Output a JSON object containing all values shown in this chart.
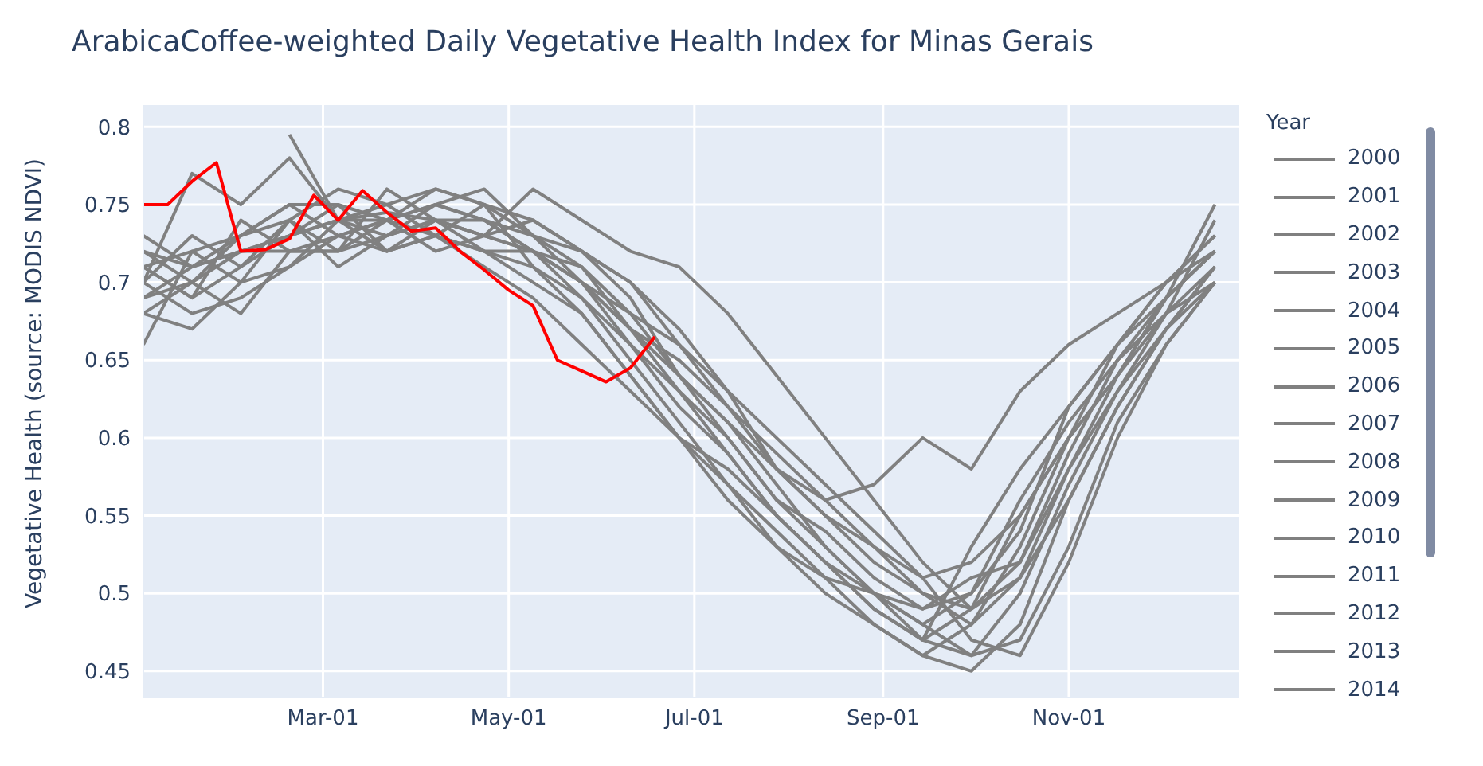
{
  "chart_data": {
    "type": "line",
    "title": "ArabicaCoffee-weighted Daily Vegetative Health Index for Minas Gerais",
    "ylabel": "Vegetative Health (source: MODIS NDVI)",
    "legend_title": "Year",
    "legend": "right",
    "grid": true,
    "marker": "none",
    "line_style": "solid",
    "x": [
      "--01-01",
      "--01-17",
      "--02-02",
      "--02-18",
      "--03-06",
      "--03-22",
      "--04-07",
      "--04-23",
      "--05-09",
      "--05-25",
      "--06-10",
      "--06-26",
      "--07-12",
      "--07-28",
      "--08-13",
      "--08-29",
      "--09-14",
      "--09-30",
      "--10-16",
      "--11-01",
      "--11-17",
      "--12-03",
      "--12-19"
    ],
    "xlim": [
      "--01-01",
      "--12-27"
    ],
    "xticks": [
      {
        "value": "--03-01",
        "label": "Mar-01"
      },
      {
        "value": "--05-01",
        "label": "May-01"
      },
      {
        "value": "--07-01",
        "label": "Jul-01"
      },
      {
        "value": "--09-01",
        "label": "Sep-01"
      },
      {
        "value": "--11-01",
        "label": "Nov-01"
      }
    ],
    "ylim": [
      0.433,
      0.814
    ],
    "yticks": [
      0.45,
      0.5,
      0.55,
      0.6,
      0.65,
      0.7,
      0.75,
      0.8
    ],
    "series": [
      {
        "name": "2000",
        "color": "#808080",
        "values": [
          null,
          null,
          null,
          0.795,
          0.74,
          0.745,
          0.74,
          0.73,
          0.72,
          0.7,
          0.67,
          0.64,
          0.61,
          0.58,
          0.55,
          0.52,
          0.5,
          0.49,
          0.52,
          0.58,
          0.64,
          0.68,
          0.7
        ]
      },
      {
        "name": "2001",
        "color": "#808080",
        "values": [
          0.7,
          0.77,
          0.75,
          0.78,
          0.74,
          0.75,
          0.76,
          0.75,
          0.74,
          0.72,
          0.7,
          0.66,
          0.62,
          0.58,
          0.55,
          0.53,
          0.5,
          0.48,
          0.51,
          0.56,
          0.62,
          0.67,
          0.7
        ]
      },
      {
        "name": "2002",
        "color": "#808080",
        "values": [
          0.72,
          0.7,
          0.73,
          0.75,
          0.75,
          0.74,
          0.75,
          0.76,
          0.73,
          0.7,
          0.68,
          0.64,
          0.6,
          0.56,
          0.53,
          0.5,
          0.47,
          0.49,
          0.55,
          0.6,
          0.64,
          0.69,
          0.72
        ]
      },
      {
        "name": "2003",
        "color": "#808080",
        "values": [
          0.69,
          0.71,
          0.72,
          0.72,
          0.73,
          0.72,
          0.73,
          0.72,
          0.71,
          0.69,
          0.66,
          0.63,
          0.59,
          0.55,
          0.52,
          0.5,
          0.48,
          0.46,
          0.5,
          0.57,
          0.63,
          0.68,
          0.74
        ]
      },
      {
        "name": "2004",
        "color": "#808080",
        "values": [
          0.68,
          0.67,
          0.7,
          0.71,
          0.74,
          0.74,
          0.75,
          0.74,
          0.72,
          0.7,
          0.67,
          0.65,
          0.62,
          0.59,
          0.56,
          0.53,
          0.51,
          0.52,
          0.55,
          0.6,
          0.66,
          0.7,
          0.73
        ]
      },
      {
        "name": "2005",
        "color": "#808080",
        "values": [
          0.71,
          0.69,
          0.74,
          0.72,
          0.72,
          0.76,
          0.74,
          0.73,
          0.76,
          0.74,
          0.72,
          0.71,
          0.68,
          0.64,
          0.6,
          0.56,
          0.52,
          0.49,
          0.51,
          0.58,
          0.63,
          0.67,
          0.71
        ]
      },
      {
        "name": "2006",
        "color": "#808080",
        "values": [
          0.66,
          0.72,
          0.73,
          0.74,
          0.71,
          0.73,
          0.74,
          0.74,
          0.72,
          0.69,
          0.65,
          0.61,
          0.57,
          0.53,
          0.51,
          0.5,
          0.49,
          0.5,
          0.54,
          0.62,
          0.66,
          0.7,
          0.73
        ]
      },
      {
        "name": "2007",
        "color": "#808080",
        "values": [
          0.7,
          0.68,
          0.69,
          0.71,
          0.73,
          0.74,
          0.73,
          0.75,
          0.73,
          0.71,
          0.68,
          0.66,
          0.63,
          0.6,
          0.57,
          0.54,
          0.51,
          0.47,
          0.46,
          0.52,
          0.6,
          0.66,
          0.7
        ]
      },
      {
        "name": "2008",
        "color": "#808080",
        "values": [
          0.71,
          0.72,
          0.7,
          0.74,
          0.76,
          0.75,
          0.73,
          0.72,
          0.72,
          0.7,
          0.66,
          0.62,
          0.59,
          0.55,
          0.52,
          0.49,
          0.47,
          0.53,
          0.58,
          0.62,
          0.66,
          0.69,
          0.72
        ]
      },
      {
        "name": "2009",
        "color": "#808080",
        "values": [
          0.73,
          0.71,
          0.72,
          0.73,
          0.74,
          0.73,
          0.75,
          0.74,
          0.73,
          0.72,
          0.7,
          0.67,
          0.63,
          0.58,
          0.56,
          0.57,
          0.6,
          0.58,
          0.63,
          0.66,
          0.68,
          0.7,
          0.72
        ]
      },
      {
        "name": "2010",
        "color": "#808080",
        "values": [
          0.69,
          0.7,
          0.68,
          0.72,
          0.72,
          0.73,
          0.74,
          0.72,
          0.7,
          0.68,
          0.64,
          0.6,
          0.57,
          0.54,
          0.51,
          0.48,
          0.46,
          0.45,
          0.48,
          0.56,
          0.62,
          0.67,
          0.71
        ]
      },
      {
        "name": "2011",
        "color": "#808080",
        "values": [
          0.72,
          0.71,
          0.73,
          0.75,
          0.73,
          0.74,
          0.72,
          0.73,
          0.74,
          0.72,
          0.69,
          0.64,
          0.61,
          0.57,
          0.53,
          0.5,
          0.48,
          0.5,
          0.56,
          0.61,
          0.65,
          0.68,
          0.71
        ]
      },
      {
        "name": "2012",
        "color": "#808080",
        "values": [
          0.7,
          0.73,
          0.71,
          0.74,
          0.72,
          0.74,
          0.76,
          0.75,
          0.71,
          0.68,
          0.64,
          0.6,
          0.56,
          0.53,
          0.5,
          0.48,
          0.46,
          0.48,
          0.53,
          0.6,
          0.64,
          0.69,
          0.75
        ]
      },
      {
        "name": "2013",
        "color": "#808080",
        "values": [
          0.68,
          0.7,
          0.72,
          0.73,
          0.75,
          0.72,
          0.74,
          0.73,
          0.72,
          0.71,
          0.67,
          0.63,
          0.6,
          0.56,
          0.54,
          0.51,
          0.49,
          0.51,
          0.52,
          0.59,
          0.65,
          0.69,
          0.72
        ]
      },
      {
        "name": "2014",
        "color": "#808080",
        "values": [
          0.71,
          0.69,
          0.71,
          0.73,
          0.74,
          0.72,
          0.73,
          0.71,
          0.69,
          0.66,
          0.63,
          0.6,
          0.58,
          0.55,
          0.52,
          0.49,
          0.47,
          0.46,
          0.47,
          0.53,
          0.61,
          0.66,
          0.7
        ]
      },
      {
        "color": "#ff0000",
        "x": [
          "--01-01",
          "--01-09",
          "--01-17",
          "--01-25",
          "--02-02",
          "--02-10",
          "--02-18",
          "--02-26",
          "--03-06",
          "--03-14",
          "--03-22",
          "--03-30",
          "--04-07",
          "--04-15",
          "--04-23",
          "--05-01",
          "--05-09",
          "--05-17",
          "--05-25",
          "--06-02",
          "--06-10",
          "--06-18"
        ],
        "values": [
          0.75,
          0.75,
          0.765,
          0.777,
          0.72,
          0.721,
          0.728,
          0.756,
          0.74,
          0.759,
          0.745,
          0.733,
          0.735,
          0.72,
          0.708,
          0.695,
          0.685,
          0.65,
          0.643,
          0.636,
          0.645,
          0.665
        ]
      }
    ]
  }
}
